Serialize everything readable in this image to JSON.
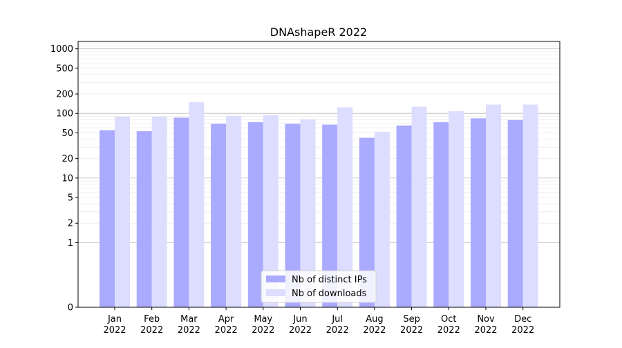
{
  "chart_data": {
    "type": "bar",
    "title": "DNAshapeR 2022",
    "xlabel": "",
    "ylabel": "",
    "y_scale": "symlog",
    "ylim": [
      0,
      1300
    ],
    "y_ticks": [
      0,
      1,
      2,
      5,
      10,
      20,
      50,
      100,
      200,
      500,
      1000
    ],
    "y_tick_labels": [
      "0",
      "1",
      "2",
      "5",
      "10",
      "20",
      "50",
      "100",
      "200",
      "500",
      "1000"
    ],
    "grid": true,
    "legend_position": "bottom-center",
    "categories": [
      "Jan\n2022",
      "Feb\n2022",
      "Mar\n2022",
      "Apr\n2022",
      "May\n2022",
      "Jun\n2022",
      "Jul\n2022",
      "Aug\n2022",
      "Sep\n2022",
      "Oct\n2022",
      "Nov\n2022",
      "Dec\n2022"
    ],
    "category_lines": [
      [
        "Jan",
        "2022"
      ],
      [
        "Feb",
        "2022"
      ],
      [
        "Mar",
        "2022"
      ],
      [
        "Apr",
        "2022"
      ],
      [
        "May",
        "2022"
      ],
      [
        "Jun",
        "2022"
      ],
      [
        "Jul",
        "2022"
      ],
      [
        "Aug",
        "2022"
      ],
      [
        "Sep",
        "2022"
      ],
      [
        "Oct",
        "2022"
      ],
      [
        "Nov",
        "2022"
      ],
      [
        "Dec",
        "2022"
      ]
    ],
    "series": [
      {
        "name": "Nb of distinct IPs",
        "color": "#aaaaff",
        "values": [
          55,
          53,
          86,
          69,
          73,
          69,
          67,
          42,
          65,
          73,
          84,
          79
        ]
      },
      {
        "name": "Nb of downloads",
        "color": "#ddddff",
        "values": [
          89,
          89,
          149,
          92,
          94,
          81,
          124,
          52,
          127,
          108,
          137,
          137
        ]
      }
    ]
  }
}
